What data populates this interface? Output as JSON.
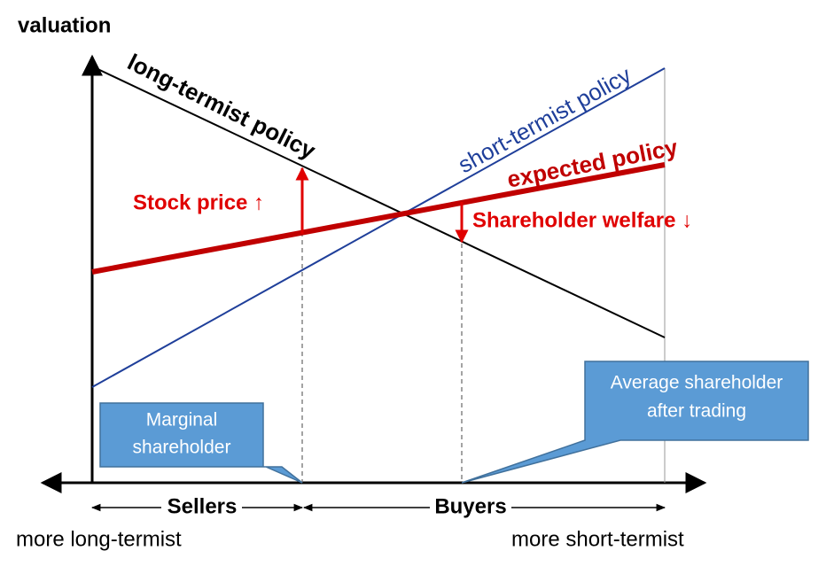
{
  "axes": {
    "y_label": "valuation"
  },
  "lines": {
    "long_termist": "long-termist policy",
    "short_termist": "short-termist policy",
    "expected": "expected policy"
  },
  "annotations": {
    "stock_price": "Stock price ↑",
    "shareholder_welfare": "Shareholder welfare ↓"
  },
  "callouts": {
    "marginal": [
      "Marginal",
      "shareholder"
    ],
    "average": [
      "Average shareholder",
      "after trading"
    ]
  },
  "ranges": {
    "sellers": "Sellers",
    "buyers": "Buyers"
  },
  "ends": {
    "left": "more long-termist",
    "right": "more short-termist"
  }
}
